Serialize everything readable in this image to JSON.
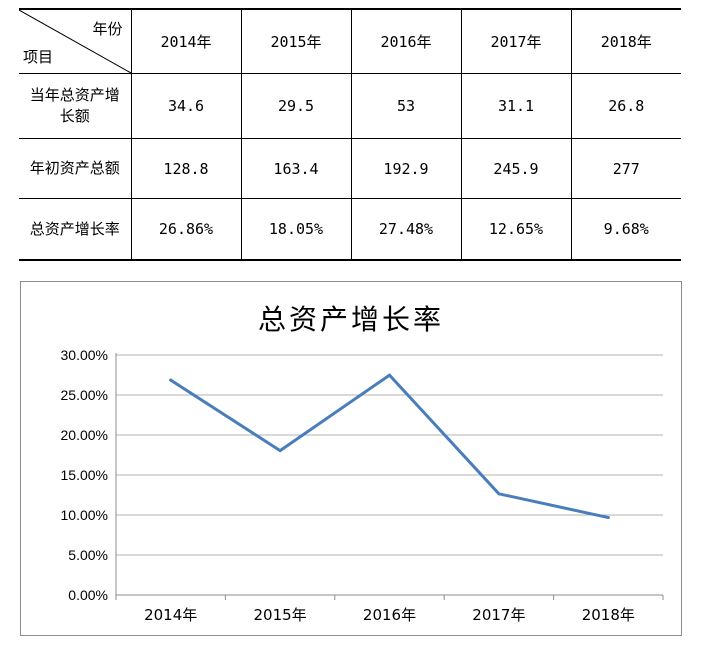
{
  "table": {
    "corner_top": "年份",
    "corner_bottom": "项目",
    "years": [
      "2014年",
      "2015年",
      "2016年",
      "2017年",
      "2018年"
    ],
    "rows": [
      {
        "label": "当年总资产增长额",
        "values": [
          "34.6",
          "29.5",
          "53",
          "31.1",
          "26.8"
        ]
      },
      {
        "label": "年初资产总额",
        "values": [
          "128.8",
          "163.4",
          "192.9",
          "245.9",
          "277"
        ]
      },
      {
        "label": "总资产增长率",
        "values": [
          "26.86%",
          "18.05%",
          "27.48%",
          "12.65%",
          "9.68%"
        ]
      }
    ]
  },
  "chart_data": {
    "type": "line",
    "title": "总资产增长率",
    "categories": [
      "2014年",
      "2015年",
      "2016年",
      "2017年",
      "2018年"
    ],
    "series": [
      {
        "values": [
          26.86,
          18.05,
          27.48,
          12.65,
          9.68
        ]
      }
    ],
    "y_ticks": [
      "0.00%",
      "5.00%",
      "10.00%",
      "15.00%",
      "20.00%",
      "25.00%",
      "30.00%"
    ],
    "ylim": [
      0,
      30
    ],
    "grid": true,
    "line_color": "#4a7ebb",
    "grid_color": "#b3b3b3"
  }
}
